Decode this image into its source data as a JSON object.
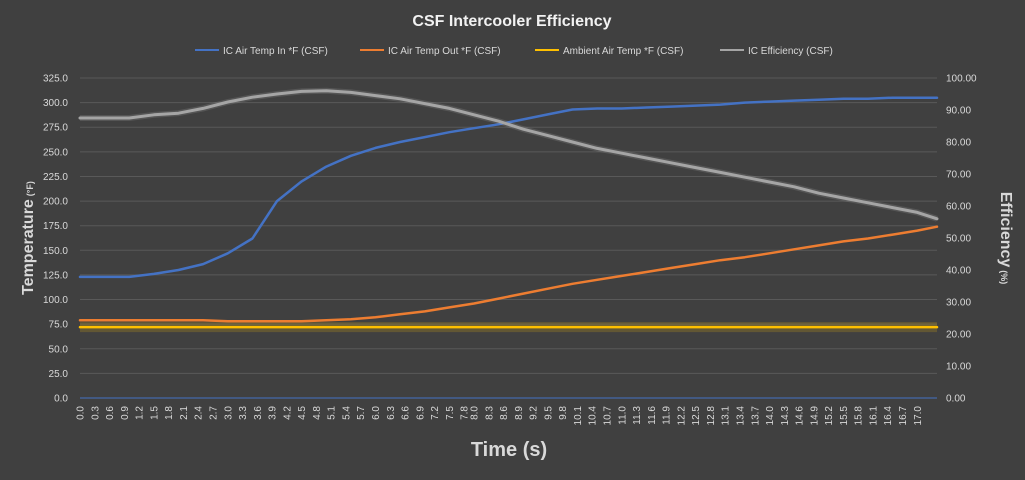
{
  "chart_data": {
    "type": "line",
    "title": "CSF Intercooler Efficiency",
    "xlabel": "Time (s)",
    "ylabel": "Temperature",
    "ylabel_unit": "(°F)",
    "y2label": "Efficiency",
    "y2label_unit": "(%)",
    "ylim": [
      0,
      325
    ],
    "y2lim": [
      0,
      100
    ],
    "grid": true,
    "legend_position": "top",
    "y_ticks": [
      "0.0",
      "25.0",
      "50.0",
      "75.0",
      "100.0",
      "125.0",
      "150.0",
      "175.0",
      "200.0",
      "225.0",
      "250.0",
      "275.0",
      "300.0",
      "325.0"
    ],
    "y2_ticks": [
      "0.00",
      "10.00",
      "20.00",
      "30.00",
      "40.00",
      "50.00",
      "60.00",
      "70.00",
      "80.00",
      "90.00",
      "100.00"
    ],
    "x_ticks": [
      "0.0",
      "0.3",
      "0.6",
      "0.9",
      "1.2",
      "1.5",
      "1.8",
      "2.1",
      "2.4",
      "2.7",
      "3.0",
      "3.3",
      "3.6",
      "3.9",
      "4.2",
      "4.5",
      "4.8",
      "5.1",
      "5.4",
      "5.7",
      "6.0",
      "6.3",
      "6.6",
      "6.9",
      "7.2",
      "7.5",
      "7.8",
      "8.0",
      "8.3",
      "8.6",
      "8.9",
      "9.2",
      "9.5",
      "9.8",
      "10.1",
      "10.4",
      "10.7",
      "11.0",
      "11.3",
      "11.6",
      "11.9",
      "12.2",
      "12.5",
      "12.8",
      "13.1",
      "13.4",
      "13.7",
      "14.0",
      "14.3",
      "14.6",
      "14.9",
      "15.2",
      "15.5",
      "15.8",
      "16.1",
      "16.4",
      "16.7",
      "17.0"
    ],
    "x": [
      0.0,
      0.5,
      1.0,
      1.5,
      2.0,
      2.5,
      3.0,
      3.5,
      4.0,
      4.5,
      5.0,
      5.5,
      6.0,
      6.5,
      7.0,
      7.5,
      8.0,
      8.5,
      9.0,
      9.5,
      10.0,
      10.5,
      11.0,
      11.5,
      12.0,
      12.5,
      13.0,
      13.5,
      14.0,
      14.5,
      15.0,
      15.5,
      16.0,
      16.5,
      17.0,
      17.4
    ],
    "series": [
      {
        "name": "IC Air Temp In *F (CSF)",
        "axis": "left",
        "color": "#4472c4",
        "values": [
          123,
          123,
          123,
          126,
          130,
          136,
          147,
          162,
          200,
          220,
          235,
          246,
          254,
          260,
          265,
          270,
          274,
          278,
          283,
          288,
          293,
          294,
          294,
          295,
          296,
          297,
          298,
          300,
          301,
          302,
          303,
          304,
          304,
          305,
          305,
          305
        ]
      },
      {
        "name": "IC Air Temp Out *F (CSF)",
        "axis": "left",
        "color": "#ed7d31",
        "values": [
          79,
          79,
          79,
          79,
          79,
          79,
          78,
          78,
          78,
          78,
          79,
          80,
          82,
          85,
          88,
          92,
          96,
          101,
          106,
          111,
          116,
          120,
          124,
          128,
          132,
          136,
          140,
          143,
          147,
          151,
          155,
          159,
          162,
          166,
          170,
          174
        ]
      },
      {
        "name": "Ambient Air Temp *F (CSF)",
        "axis": "left",
        "color": "#ffc000",
        "values": [
          72,
          72,
          72,
          72,
          72,
          72,
          72,
          72,
          72,
          72,
          72,
          72,
          72,
          72,
          72,
          72,
          72,
          72,
          72,
          72,
          72,
          72,
          72,
          72,
          72,
          72,
          72,
          72,
          72,
          72,
          72,
          72,
          72,
          72,
          72,
          72
        ]
      },
      {
        "name": "IC Efficiency (CSF)",
        "axis": "right",
        "color": "#a5a5a5",
        "values": [
          87.5,
          87.5,
          87.5,
          88.5,
          89,
          90.5,
          92.5,
          94,
          95,
          95.8,
          96,
          95.5,
          94.5,
          93.5,
          92,
          90.5,
          88.5,
          86.5,
          84,
          82,
          80,
          78,
          76.5,
          75,
          73.5,
          72,
          70.5,
          69,
          67.5,
          66,
          64,
          62.5,
          61,
          59.5,
          58,
          56
        ]
      }
    ]
  }
}
